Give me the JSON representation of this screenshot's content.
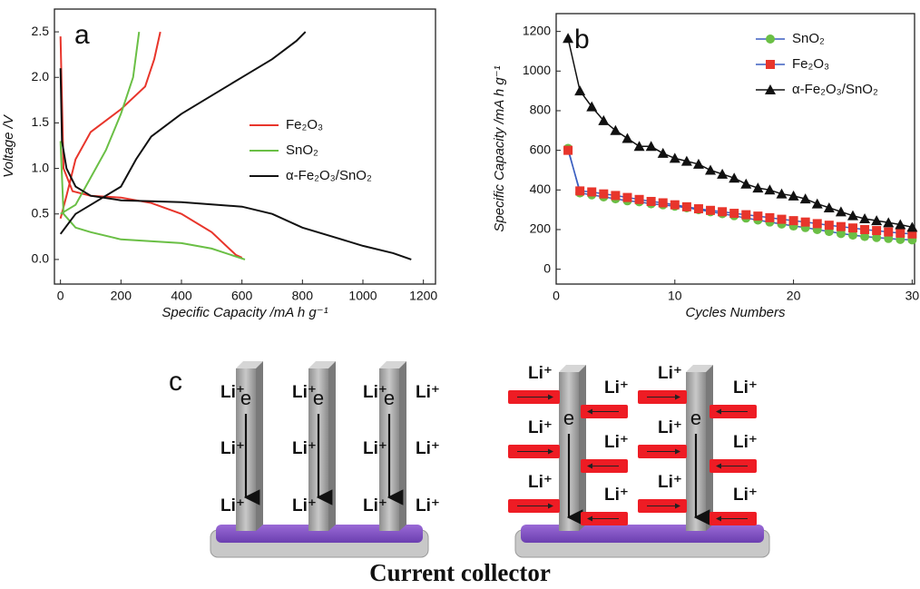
{
  "chart_data": [
    {
      "type": "line",
      "panel_label": "a",
      "x_label": "Specific Capacity /mA h g⁻¹",
      "y_label": "Voltage /V",
      "xlim": [
        -20,
        1240
      ],
      "ylim": [
        -0.27,
        2.75
      ],
      "xticks": [
        0,
        200,
        400,
        600,
        800,
        1000,
        1200
      ],
      "yticks": [
        {
          "value": 0,
          "label": "0.0"
        },
        0.5,
        {
          "value": 1,
          "label": "1.0"
        },
        1.5,
        {
          "value": 2,
          "label": "2.0"
        },
        2.5
      ],
      "legend": "center right",
      "series": [
        {
          "name": "Fe₂O₃",
          "color": "#e8352b",
          "x": [
            0,
            10,
            40,
            100,
            200,
            300,
            400,
            500,
            580,
            600,
            null,
            0,
            20,
            50,
            100,
            200,
            280,
            310,
            330
          ],
          "values": [
            2.45,
            1.0,
            0.75,
            0.7,
            0.68,
            0.62,
            0.5,
            0.3,
            0.05,
            0.02,
            null,
            0.45,
            0.7,
            1.1,
            1.4,
            1.65,
            1.9,
            2.2,
            2.5
          ]
        },
        {
          "name": "SnO₂",
          "color": "#6abf45",
          "x": [
            0,
            10,
            50,
            100,
            200,
            400,
            500,
            610,
            null,
            0,
            50,
            100,
            150,
            200,
            240,
            260
          ],
          "values": [
            1.3,
            0.5,
            0.35,
            0.3,
            0.22,
            0.18,
            0.12,
            0.0,
            null,
            0.5,
            0.6,
            0.9,
            1.2,
            1.6,
            2.0,
            2.5
          ]
        },
        {
          "name": "α-Fe₂O₃/SnO₂",
          "color": "#111111",
          "x": [
            0,
            5,
            20,
            50,
            100,
            200,
            400,
            600,
            700,
            800,
            900,
            1000,
            1100,
            1160,
            null,
            0,
            50,
            100,
            200,
            250,
            300,
            400,
            500,
            600,
            700,
            780,
            810
          ],
          "values": [
            2.1,
            1.3,
            1.0,
            0.8,
            0.7,
            0.65,
            0.63,
            0.58,
            0.5,
            0.35,
            0.25,
            0.15,
            0.07,
            0.0,
            null,
            0.28,
            0.5,
            0.6,
            0.8,
            1.1,
            1.35,
            1.6,
            1.8,
            2.0,
            2.2,
            2.4,
            2.5
          ]
        }
      ]
    },
    {
      "type": "scatter",
      "panel_label": "b",
      "x_label": "Cycles Numbers",
      "y_label": "Specific Capacity /mA h g⁻¹",
      "xlim": [
        0,
        30.2
      ],
      "ylim": [
        -75,
        1290
      ],
      "xticks": [
        0,
        10,
        20,
        30
      ],
      "yticks": [
        0,
        200,
        400,
        600,
        800,
        1000,
        1200
      ],
      "legend": "upper right",
      "x": [
        1,
        2,
        3,
        4,
        5,
        6,
        7,
        8,
        9,
        10,
        11,
        12,
        13,
        14,
        15,
        16,
        17,
        18,
        19,
        20,
        21,
        22,
        23,
        24,
        25,
        26,
        27,
        28,
        29,
        30
      ],
      "series": [
        {
          "name": "SnO₂",
          "color": "#6abf45",
          "line_color": "#3b5fc0",
          "marker": "circle",
          "values": [
            610,
            385,
            375,
            365,
            355,
            345,
            340,
            330,
            325,
            318,
            310,
            300,
            290,
            280,
            270,
            258,
            248,
            238,
            228,
            218,
            210,
            200,
            190,
            180,
            172,
            165,
            160,
            155,
            150,
            148
          ]
        },
        {
          "name": "Fe₂O₃",
          "color": "#e8352b",
          "line_color": "#3b5fc0",
          "marker": "square",
          "values": [
            600,
            395,
            390,
            380,
            372,
            362,
            352,
            342,
            335,
            325,
            315,
            305,
            297,
            290,
            282,
            275,
            268,
            260,
            252,
            245,
            238,
            230,
            222,
            215,
            208,
            200,
            195,
            188,
            182,
            178
          ]
        },
        {
          "name": "α-Fe₂O₃/SnO₂",
          "color": "#111111",
          "line_color": "#111111",
          "marker": "triangle",
          "values": [
            1165,
            900,
            820,
            750,
            700,
            660,
            620,
            620,
            585,
            560,
            545,
            530,
            500,
            480,
            460,
            430,
            410,
            400,
            380,
            370,
            355,
            330,
            310,
            290,
            270,
            255,
            245,
            235,
            225,
            212
          ]
        }
      ]
    }
  ],
  "diagram": {
    "label": "c",
    "ion": "Li⁺",
    "electron": "e",
    "caption": "Current collector"
  }
}
